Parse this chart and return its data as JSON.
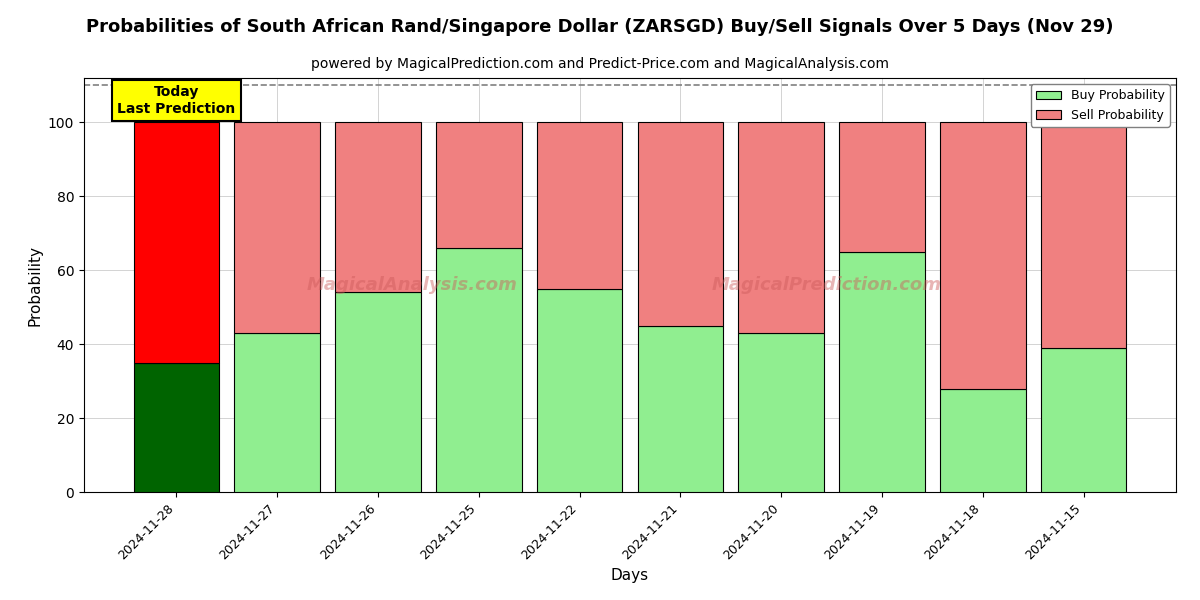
{
  "title": "Probabilities of South African Rand/Singapore Dollar (ZARSGD) Buy/Sell Signals Over 5 Days (Nov 29)",
  "subtitle": "powered by MagicalPrediction.com and Predict-Price.com and MagicalAnalysis.com",
  "xlabel": "Days",
  "ylabel": "Probability",
  "dates": [
    "2024-11-28",
    "2024-11-27",
    "2024-11-26",
    "2024-11-25",
    "2024-11-22",
    "2024-11-21",
    "2024-11-20",
    "2024-11-19",
    "2024-11-18",
    "2024-11-15"
  ],
  "buy_values": [
    35,
    43,
    54,
    66,
    55,
    45,
    43,
    65,
    28,
    39
  ],
  "sell_values": [
    65,
    57,
    46,
    34,
    45,
    55,
    57,
    35,
    72,
    61
  ],
  "buy_color_today": "#006400",
  "sell_color_today": "#FF0000",
  "buy_color_rest": "#90EE90",
  "sell_color_rest": "#F08080",
  "bar_edge_color": "#000000",
  "ylim": [
    0,
    112
  ],
  "yticks": [
    0,
    20,
    40,
    60,
    80,
    100
  ],
  "dashed_line_y": 110,
  "today_label": "Today\nLast Prediction",
  "legend_buy": "Buy Probability",
  "legend_sell": "Sell Probability",
  "watermark1": "MagicalAnalysis.com",
  "watermark2": "MagicalPrediction.com",
  "title_fontsize": 13,
  "subtitle_fontsize": 10,
  "bar_width": 0.85
}
